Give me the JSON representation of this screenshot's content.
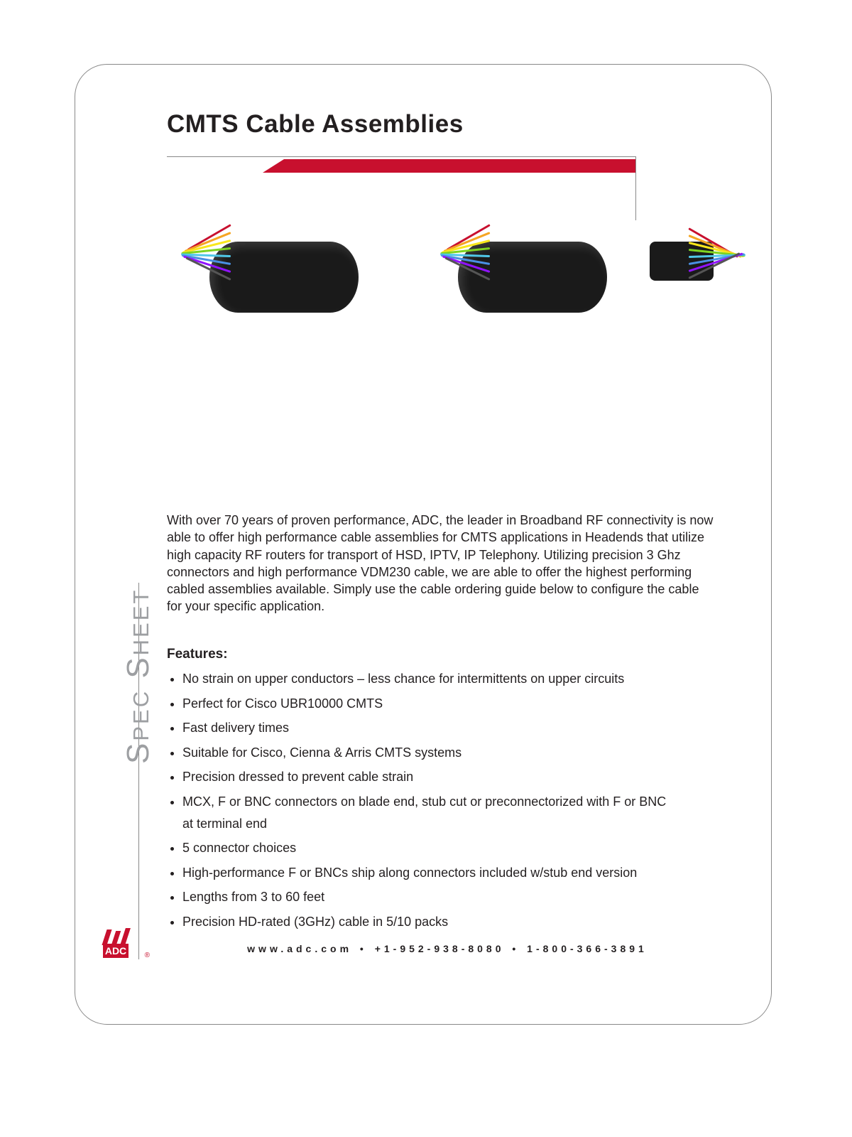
{
  "title": "CMTS Cable Assemblies",
  "accent_color": "#c8102e",
  "fan_colors": [
    "#c8102e",
    "#f5a623",
    "#f8e71c",
    "#7ed321",
    "#50c8e8",
    "#4a90e2",
    "#9013fe",
    "#555555"
  ],
  "intro": "With over 70 years of proven performance, ADC, the leader in Broadband RF connectivity is now able to offer high performance cable assemblies for CMTS applications in Headends that utilize high capacity RF routers for transport of HSD, IPTV, IP Telephony. Utilizing precision 3 Ghz connectors and high performance VDM230 cable, we are able to offer the highest performing cabled assemblies available. Simply use the cable ordering guide below to configure the cable for your specific application.",
  "features_heading": "Features:",
  "features": [
    "No strain on upper conductors – less chance for intermittents on upper circuits",
    "Perfect for Cisco UBR10000 CMTS",
    "Fast delivery times",
    "Suitable for Cisco, Cienna & Arris CMTS systems",
    "Precision dressed to prevent cable strain",
    "MCX, F or BNC connectors on blade end, stub cut or preconnectorized with F or BNC at terminal end",
    "5 connector choices",
    "High-performance F or BNCs ship along connectors included w/stub end version",
    "Lengths from 3 to 60 feet",
    "Precision HD-rated (3GHz) cable in 5/10 packs"
  ],
  "side_label": "Spec Sheet",
  "logo_text": "ADC",
  "footer_items": [
    "www.adc.com",
    "+1-952-938-8080",
    "1-800-366-3891"
  ]
}
